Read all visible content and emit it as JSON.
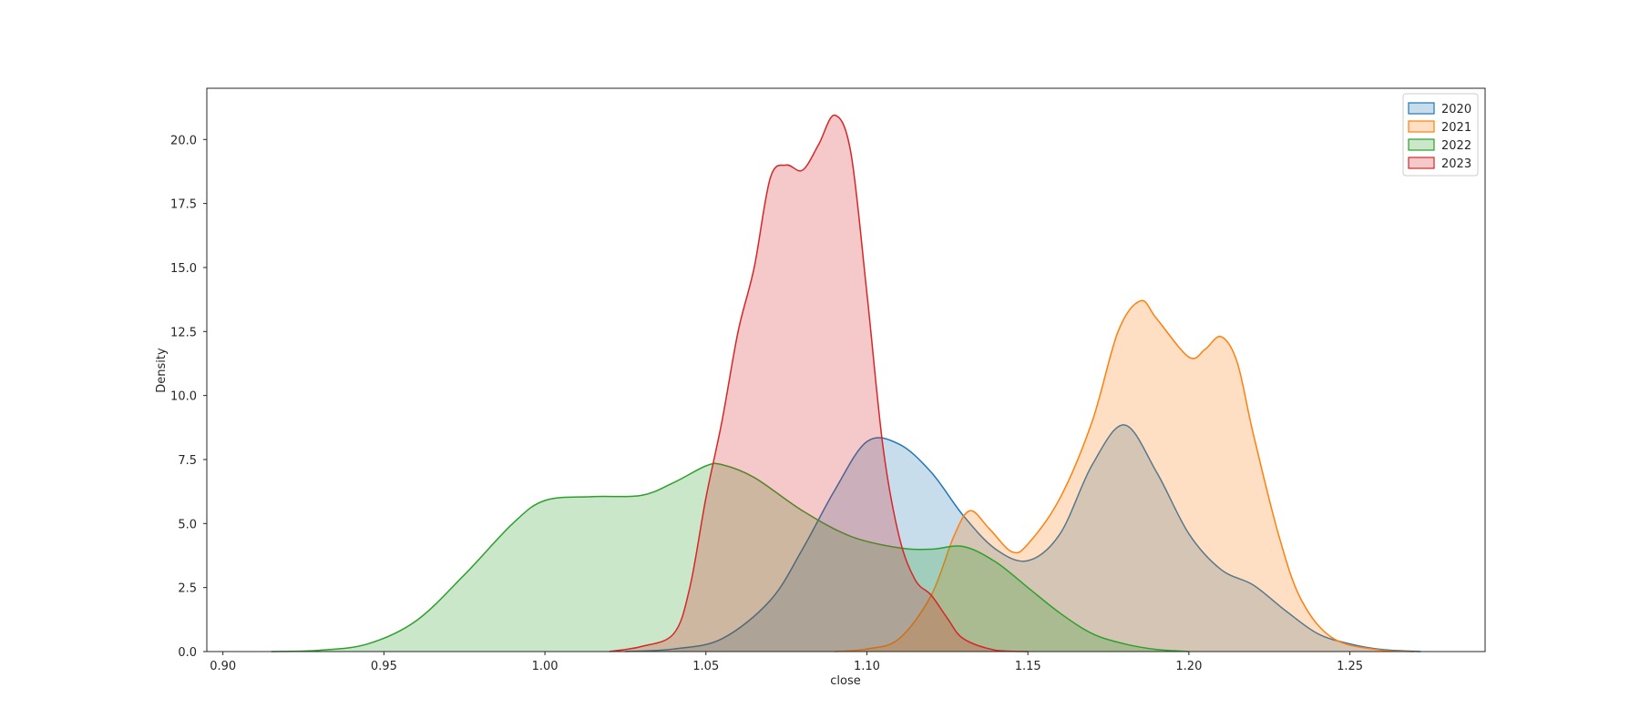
{
  "chart_data": {
    "type": "area",
    "xlabel": "close",
    "ylabel": "Density",
    "xlim": [
      0.895,
      1.292
    ],
    "ylim": [
      0,
      22.0
    ],
    "xticks": [
      "0.90",
      "0.95",
      "1.00",
      "1.05",
      "1.10",
      "1.15",
      "1.20",
      "1.25"
    ],
    "yticks": [
      "0.0",
      "2.5",
      "5.0",
      "7.5",
      "10.0",
      "12.5",
      "15.0",
      "17.5",
      "20.0"
    ],
    "legend_position": "top-right",
    "grid": false,
    "series": [
      {
        "name": "2020",
        "color": "#1f77b4",
        "points": [
          [
            1.025,
            0.0
          ],
          [
            1.04,
            0.1
          ],
          [
            1.055,
            0.5
          ],
          [
            1.07,
            2.0
          ],
          [
            1.08,
            4.0
          ],
          [
            1.09,
            6.3
          ],
          [
            1.1,
            8.2
          ],
          [
            1.11,
            8.1
          ],
          [
            1.12,
            7.0
          ],
          [
            1.13,
            5.3
          ],
          [
            1.14,
            4.0
          ],
          [
            1.15,
            3.55
          ],
          [
            1.16,
            4.6
          ],
          [
            1.17,
            7.3
          ],
          [
            1.18,
            8.85
          ],
          [
            1.19,
            7.0
          ],
          [
            1.2,
            4.6
          ],
          [
            1.21,
            3.2
          ],
          [
            1.22,
            2.6
          ],
          [
            1.23,
            1.6
          ],
          [
            1.24,
            0.7
          ],
          [
            1.25,
            0.3
          ],
          [
            1.26,
            0.08
          ],
          [
            1.272,
            0.0
          ]
        ]
      },
      {
        "name": "2021",
        "color": "#ff7f0e",
        "points": [
          [
            1.09,
            0.0
          ],
          [
            1.1,
            0.1
          ],
          [
            1.11,
            0.5
          ],
          [
            1.12,
            2.2
          ],
          [
            1.127,
            4.5
          ],
          [
            1.132,
            5.5
          ],
          [
            1.138,
            4.8
          ],
          [
            1.145,
            3.9
          ],
          [
            1.15,
            4.2
          ],
          [
            1.16,
            6.0
          ],
          [
            1.17,
            9.0
          ],
          [
            1.178,
            12.5
          ],
          [
            1.185,
            13.7
          ],
          [
            1.19,
            13.0
          ],
          [
            1.2,
            11.5
          ],
          [
            1.205,
            11.8
          ],
          [
            1.21,
            12.3
          ],
          [
            1.215,
            11.3
          ],
          [
            1.22,
            8.5
          ],
          [
            1.228,
            4.5
          ],
          [
            1.235,
            2.0
          ],
          [
            1.245,
            0.5
          ],
          [
            1.26,
            0.05
          ],
          [
            1.27,
            0.0
          ]
        ]
      },
      {
        "name": "2022",
        "color": "#2ca02c",
        "points": [
          [
            0.915,
            0.0
          ],
          [
            0.93,
            0.05
          ],
          [
            0.945,
            0.3
          ],
          [
            0.96,
            1.2
          ],
          [
            0.975,
            3.0
          ],
          [
            0.99,
            5.0
          ],
          [
            1.0,
            5.9
          ],
          [
            1.015,
            6.05
          ],
          [
            1.03,
            6.1
          ],
          [
            1.04,
            6.6
          ],
          [
            1.05,
            7.25
          ],
          [
            1.055,
            7.3
          ],
          [
            1.065,
            6.8
          ],
          [
            1.08,
            5.5
          ],
          [
            1.095,
            4.5
          ],
          [
            1.11,
            4.05
          ],
          [
            1.12,
            4.0
          ],
          [
            1.13,
            4.1
          ],
          [
            1.14,
            3.5
          ],
          [
            1.15,
            2.5
          ],
          [
            1.16,
            1.5
          ],
          [
            1.17,
            0.7
          ],
          [
            1.18,
            0.3
          ],
          [
            1.19,
            0.08
          ],
          [
            1.2,
            0.0
          ]
        ]
      },
      {
        "name": "2023",
        "color": "#d62728",
        "points": [
          [
            1.02,
            0.0
          ],
          [
            1.03,
            0.2
          ],
          [
            1.04,
            0.7
          ],
          [
            1.045,
            2.5
          ],
          [
            1.05,
            6.0
          ],
          [
            1.055,
            9.0
          ],
          [
            1.06,
            12.5
          ],
          [
            1.065,
            15.0
          ],
          [
            1.07,
            18.5
          ],
          [
            1.075,
            19.0
          ],
          [
            1.08,
            18.8
          ],
          [
            1.085,
            19.8
          ],
          [
            1.09,
            20.95
          ],
          [
            1.095,
            19.5
          ],
          [
            1.1,
            14.0
          ],
          [
            1.105,
            8.0
          ],
          [
            1.11,
            4.5
          ],
          [
            1.115,
            2.8
          ],
          [
            1.12,
            2.2
          ],
          [
            1.125,
            1.3
          ],
          [
            1.13,
            0.5
          ],
          [
            1.14,
            0.05
          ],
          [
            1.15,
            0.0
          ]
        ]
      }
    ]
  }
}
